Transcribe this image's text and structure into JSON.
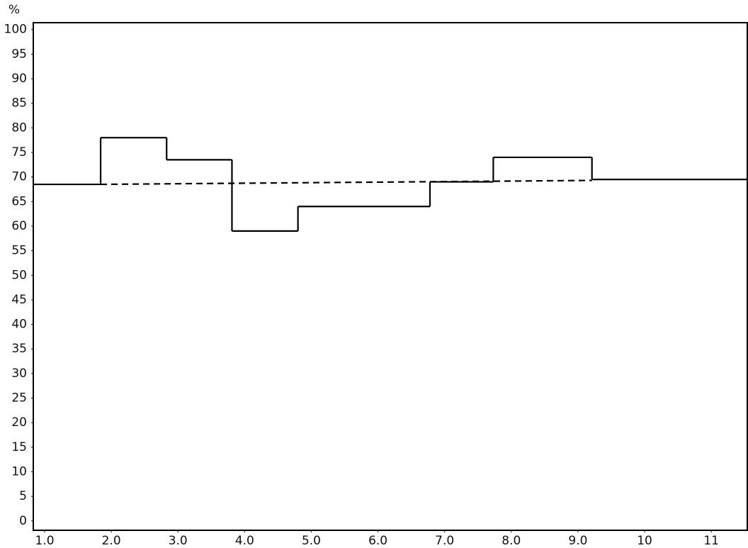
{
  "chart_data": {
    "type": "step",
    "y_label": "%",
    "xlim": [
      0.83,
      11.54
    ],
    "xticks": [
      {
        "value": 1,
        "label": "1.0"
      },
      {
        "value": 2,
        "label": "2.0"
      },
      {
        "value": 3,
        "label": "3.0"
      },
      {
        "value": 4,
        "label": "4.0"
      },
      {
        "value": 5,
        "label": "5.0"
      },
      {
        "value": 6,
        "label": "6.0"
      },
      {
        "value": 7,
        "label": "7.0"
      },
      {
        "value": 8,
        "label": "8.0"
      },
      {
        "value": 9,
        "label": "9.0"
      },
      10,
      11
    ],
    "ylim": [
      -1.9,
      101.4
    ],
    "yticks": [
      0,
      5,
      10,
      15,
      20,
      25,
      30,
      35,
      40,
      45,
      50,
      55,
      60,
      65,
      70,
      75,
      80,
      85,
      90,
      95,
      100
    ],
    "grid": false,
    "series": [
      {
        "color": "#000000",
        "style": "solid",
        "step": true,
        "x": [
          0.83,
          1.84,
          2.83,
          3.81,
          4.8,
          6.78,
          7.73,
          9.21
        ],
        "values": [
          68.5,
          78,
          73.5,
          59,
          64,
          69,
          74,
          69.5
        ]
      },
      {
        "color": "#000000",
        "style": "dashed",
        "step": false,
        "x": [
          1.84,
          9.21
        ],
        "values": [
          68.5,
          69.3
        ]
      }
    ]
  }
}
